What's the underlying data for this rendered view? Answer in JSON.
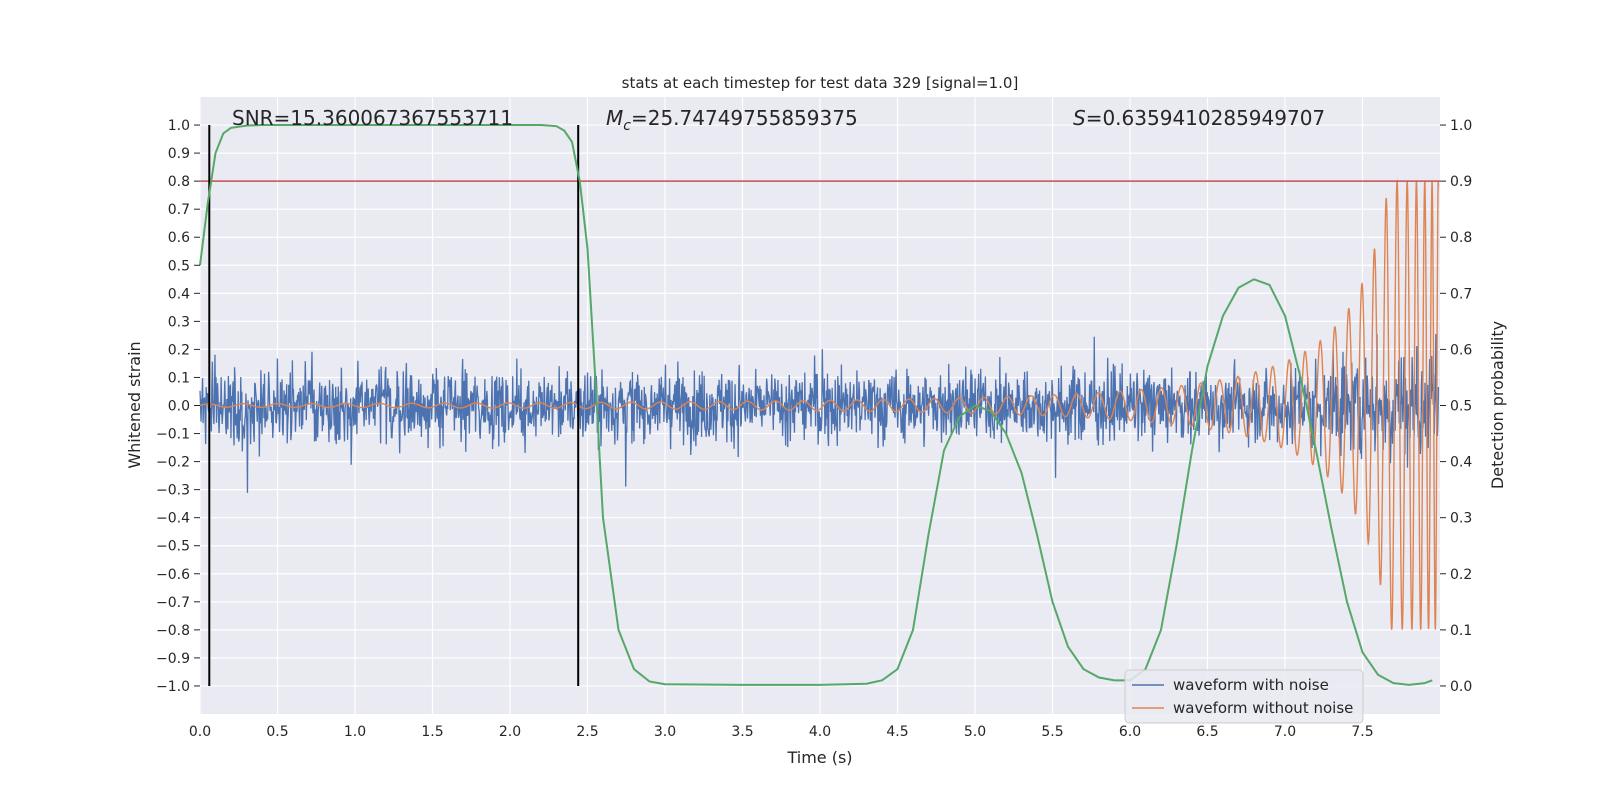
{
  "chart_data": {
    "type": "line",
    "title": "stats at each timestep for test data 329 [signal=1.0]",
    "xlabel": "Time (s)",
    "ylabel": "Whitened strain",
    "y2label": "Detection probability",
    "xlim": [
      0.0,
      8.0
    ],
    "ylim": [
      -1.1,
      1.1
    ],
    "y2lim": [
      -0.05,
      1.05
    ],
    "grid": true,
    "legend_position": "lower-right",
    "xticks": [
      "0.0",
      "0.5",
      "1.0",
      "1.5",
      "2.0",
      "2.5",
      "3.0",
      "3.5",
      "4.0",
      "4.5",
      "5.0",
      "5.5",
      "6.0",
      "6.5",
      "7.0",
      "7.5"
    ],
    "yticks": [
      "1.0",
      "0.9",
      "0.8",
      "0.7",
      "0.6",
      "0.5",
      "0.4",
      "0.3",
      "0.2",
      "0.1",
      "0.0",
      "−0.1",
      "−0.2",
      "−0.3",
      "−0.4",
      "−0.5",
      "−0.6",
      "−0.7",
      "−0.8",
      "−0.9",
      "−1.0"
    ],
    "y2ticks": [
      "1.0",
      "0.9",
      "0.8",
      "0.7",
      "0.6",
      "0.5",
      "0.4",
      "0.3",
      "0.2",
      "0.1",
      "0.0"
    ],
    "annotations": {
      "snr": "SNR=15.360067367553711",
      "mc_symbol": "M",
      "mc_sub": "c",
      "mc_value": "=25.74749755859375",
      "s_symbol": "S",
      "s_value": "=0.6359410285949707"
    },
    "series": [
      {
        "name": "waveform with noise",
        "color": "#4c72b0",
        "style": "noisy strain, amplitude ~0.25, growing to ~0.5 near t=8"
      },
      {
        "name": "waveform without noise",
        "color": "#dd8452",
        "style": "chirp signal, amplitude growing from 0 to ~0.75 at t=8"
      }
    ],
    "detection_probability": {
      "color": "#55a868",
      "x": [
        0.0,
        0.05,
        0.1,
        0.15,
        0.2,
        0.3,
        0.4,
        0.6,
        0.8,
        1.0,
        1.5,
        2.0,
        2.2,
        2.3,
        2.35,
        2.4,
        2.45,
        2.5,
        2.55,
        2.6,
        2.7,
        2.8,
        2.9,
        3.0,
        3.5,
        4.0,
        4.3,
        4.4,
        4.5,
        4.6,
        4.7,
        4.8,
        4.9,
        5.0,
        5.1,
        5.2,
        5.3,
        5.4,
        5.5,
        5.6,
        5.7,
        5.8,
        5.9,
        6.0,
        6.1,
        6.2,
        6.3,
        6.4,
        6.5,
        6.6,
        6.7,
        6.8,
        6.9,
        7.0,
        7.1,
        7.2,
        7.3,
        7.4,
        7.5,
        7.6,
        7.7,
        7.8,
        7.9,
        7.95
      ],
      "y": [
        0.75,
        0.86,
        0.95,
        0.985,
        0.995,
        0.999,
        1.0,
        1.0,
        1.0,
        1.0,
        1.0,
        1.0,
        1.0,
        0.998,
        0.99,
        0.97,
        0.9,
        0.78,
        0.55,
        0.3,
        0.1,
        0.03,
        0.008,
        0.003,
        0.002,
        0.002,
        0.004,
        0.01,
        0.03,
        0.1,
        0.27,
        0.42,
        0.48,
        0.5,
        0.49,
        0.45,
        0.38,
        0.27,
        0.15,
        0.07,
        0.03,
        0.015,
        0.01,
        0.01,
        0.03,
        0.1,
        0.25,
        0.42,
        0.57,
        0.66,
        0.71,
        0.725,
        0.715,
        0.66,
        0.55,
        0.42,
        0.28,
        0.15,
        0.06,
        0.02,
        0.005,
        0.002,
        0.005,
        0.01
      ]
    },
    "threshold": {
      "value": 0.9,
      "color": "#c44e52"
    },
    "vlines": [
      0.06,
      2.44
    ]
  }
}
